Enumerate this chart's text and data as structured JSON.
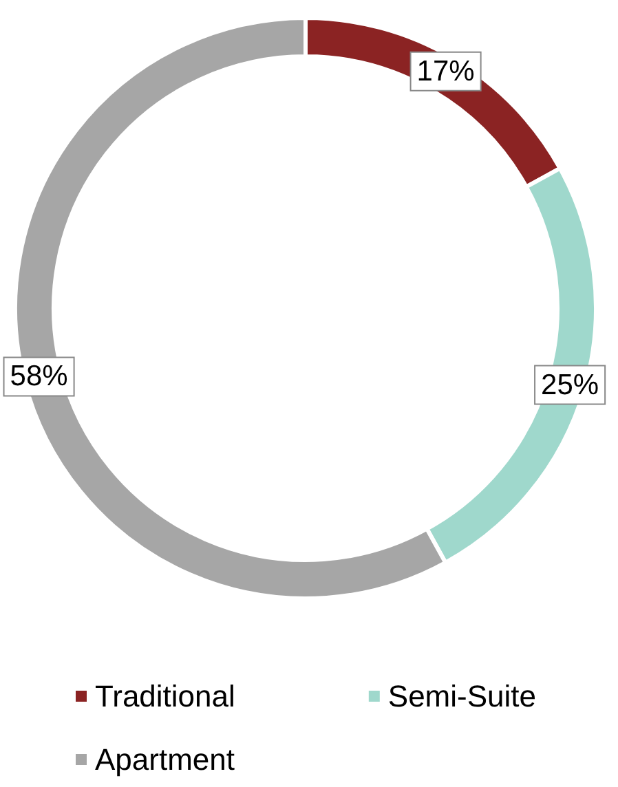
{
  "chart_data": {
    "type": "donut",
    "categories": [
      "Traditional",
      "Semi-Suite",
      "Apartment"
    ],
    "values": [
      17,
      25,
      58
    ],
    "colors": [
      "#8b2323",
      "#9fd8cc",
      "#a6a6a6"
    ],
    "value_labels": [
      "17%",
      "25%",
      "58%"
    ],
    "legend": "bottom"
  }
}
